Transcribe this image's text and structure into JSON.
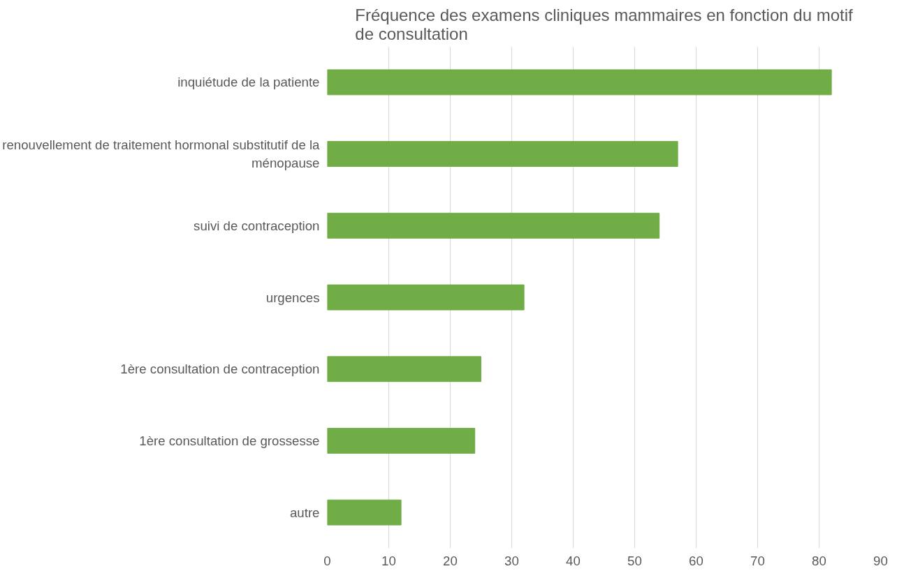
{
  "chart_data": {
    "type": "bar",
    "orientation": "horizontal",
    "title": "Fréquence des examens cliniques mammaires en fonction du motif de consultation",
    "categories": [
      "inquiétude de la patiente",
      "renouvellement de traitement hormonal substitutif de la ménopause",
      "suivi de contraception",
      "urgences",
      "1ère consultation de contraception",
      "1ère consultation de grossesse",
      "autre"
    ],
    "values": [
      82,
      57,
      54,
      32,
      25,
      24,
      12
    ],
    "color": "#70ad47",
    "xlim": [
      0,
      90
    ],
    "xticks": [
      0,
      10,
      20,
      30,
      40,
      50,
      60,
      70,
      80,
      90
    ],
    "grid": "x"
  }
}
